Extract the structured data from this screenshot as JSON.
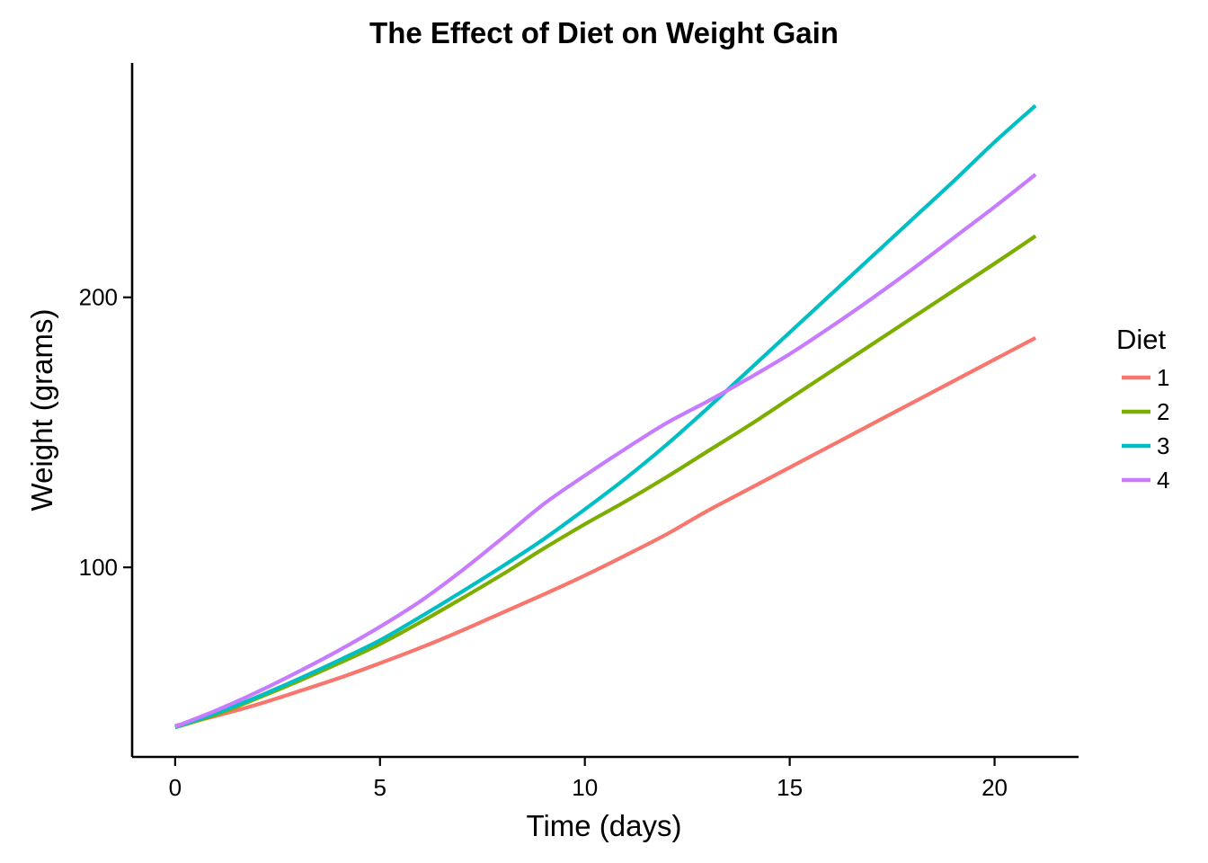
{
  "chart_data": {
    "type": "line",
    "title": "The Effect of Diet on Weight Gain",
    "xlabel": "Time (days)",
    "ylabel": "Weight (grams)",
    "xlim": [
      -1.05,
      22.05
    ],
    "ylim": [
      29.8,
      286.8
    ],
    "x_ticks": [
      0,
      5,
      10,
      15,
      20
    ],
    "x_tick_labels": [
      "0",
      "5",
      "10",
      "15",
      "20"
    ],
    "y_ticks": [
      100,
      200
    ],
    "y_tick_labels": [
      "100",
      "200"
    ],
    "grid": false,
    "legend": {
      "title": "Diet",
      "position": "right"
    },
    "series": [
      {
        "name": "1",
        "color": "#F8766D",
        "x": [
          0,
          1,
          2,
          3,
          4,
          5,
          6,
          7,
          8,
          9,
          10,
          11,
          12,
          13,
          14,
          15,
          16,
          17,
          18,
          19,
          20,
          21
        ],
        "y": [
          41.3,
          45.0,
          49.2,
          54.0,
          59.0,
          64.5,
          70.3,
          76.6,
          83.3,
          90.0,
          97.0,
          104.5,
          112.3,
          121.0,
          129.0,
          137.0,
          145.0,
          153.0,
          161.0,
          169.0,
          177.0,
          185.0
        ]
      },
      {
        "name": "2",
        "color": "#7CAE00",
        "x": [
          0,
          1,
          2,
          3,
          4,
          5,
          6,
          7,
          8,
          9,
          10,
          11,
          12,
          13,
          14,
          15,
          16,
          17,
          18,
          19,
          20,
          21
        ],
        "y": [
          40.7,
          45.5,
          51.5,
          57.8,
          64.5,
          71.6,
          79.8,
          88.5,
          97.5,
          107.0,
          116.0,
          124.5,
          133.5,
          143.0,
          152.5,
          162.5,
          172.5,
          182.5,
          192.5,
          202.5,
          212.5,
          222.7
        ]
      },
      {
        "name": "3",
        "color": "#00BFC4",
        "x": [
          0,
          1,
          2,
          3,
          4,
          5,
          6,
          7,
          8,
          9,
          10,
          11,
          12,
          13,
          14,
          15,
          16,
          17,
          18,
          19,
          20,
          21
        ],
        "y": [
          40.8,
          46.0,
          52.0,
          58.6,
          65.6,
          73.0,
          81.8,
          91.0,
          100.5,
          110.5,
          121.5,
          133.0,
          145.5,
          159.0,
          173.0,
          187.0,
          201.0,
          215.0,
          229.0,
          243.0,
          257.5,
          271.0
        ]
      },
      {
        "name": "4",
        "color": "#C77CFF",
        "x": [
          0,
          1,
          2,
          3,
          4,
          5,
          6,
          7,
          8,
          9,
          10,
          11,
          12,
          13,
          14,
          15,
          16,
          17,
          18,
          19,
          20,
          21
        ],
        "y": [
          41.0,
          47.0,
          53.8,
          61.3,
          69.3,
          78.0,
          87.6,
          98.8,
          111.0,
          123.5,
          134.0,
          144.0,
          153.5,
          161.5,
          170.0,
          179.0,
          189.0,
          199.5,
          210.5,
          222.0,
          233.5,
          245.5
        ]
      }
    ]
  }
}
